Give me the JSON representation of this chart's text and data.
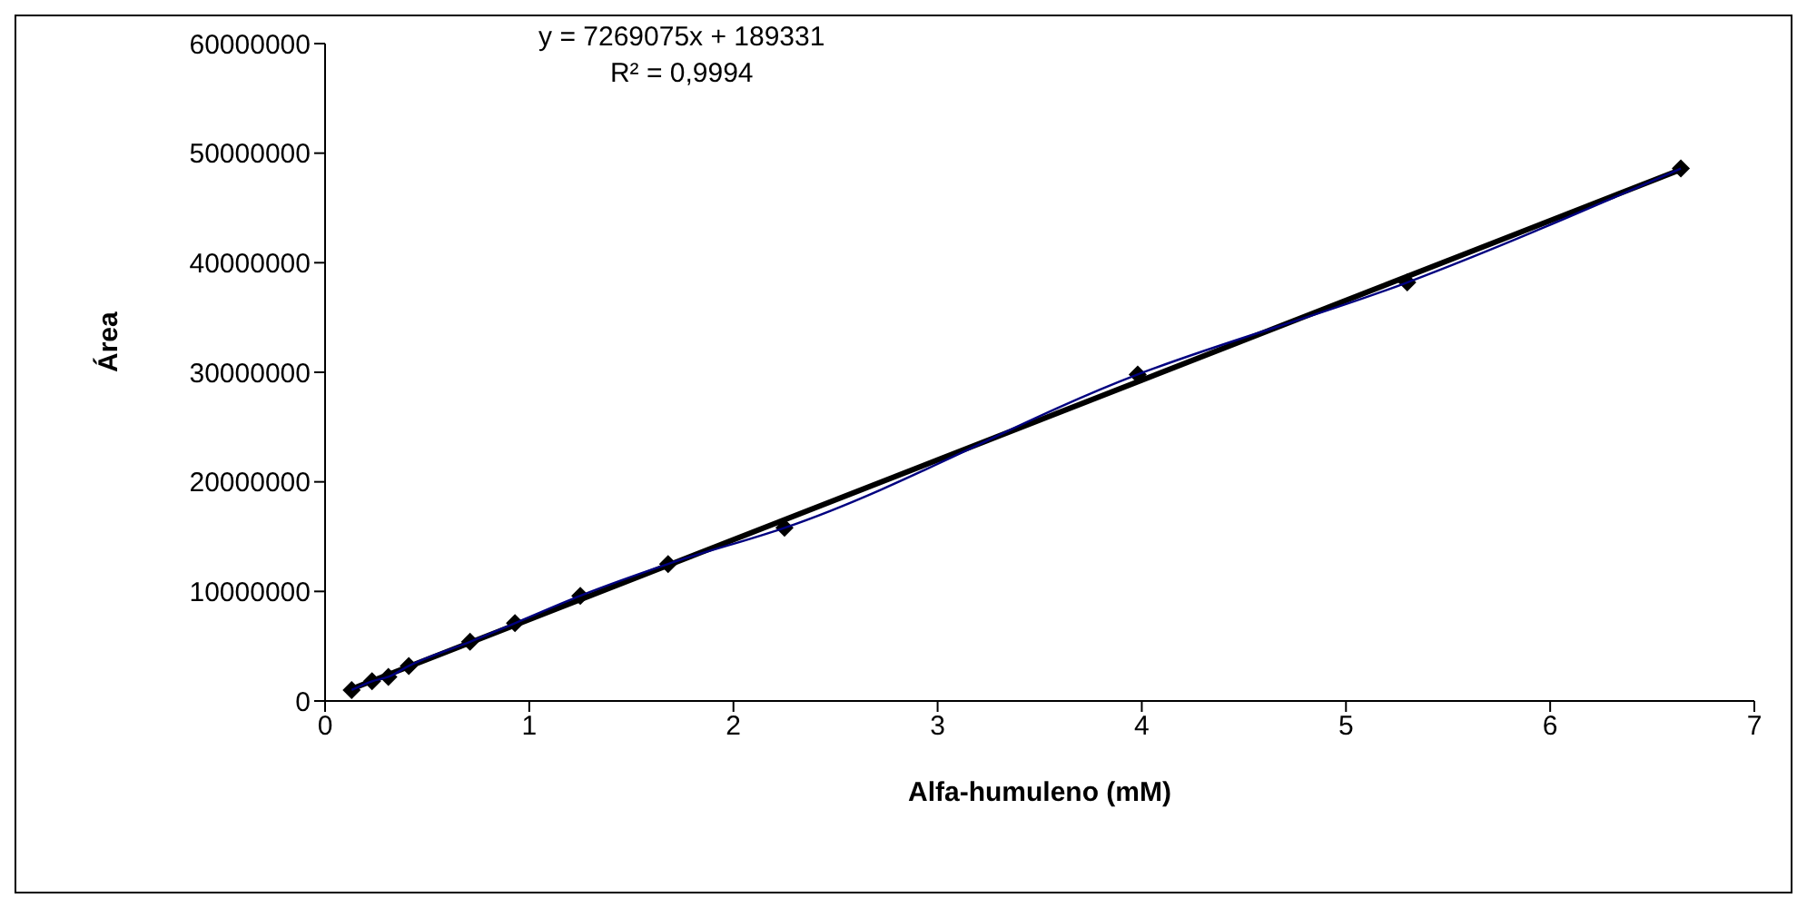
{
  "chart_data": {
    "type": "scatter",
    "xlabel": "Alfa-humuleno (mM)",
    "ylabel": "Área",
    "annotations": [
      "y = 7269075x + 189331",
      "R² = 0,9994"
    ],
    "xlim": [
      0,
      7
    ],
    "xticks": [
      0,
      1,
      2,
      3,
      4,
      5,
      6,
      7
    ],
    "ylim": [
      0,
      60000000
    ],
    "yticks": [
      0,
      10000000,
      20000000,
      30000000,
      40000000,
      50000000,
      60000000
    ],
    "grid": false,
    "legend": false,
    "series": [
      {
        "type": "line",
        "color": "#000000",
        "marker": "none",
        "x": [
          0.13,
          6.64
        ],
        "values": [
          1100000,
          48500000
        ]
      },
      {
        "color": "#000000",
        "marker": "diamond",
        "x": [
          0.13,
          0.23,
          0.31,
          0.41,
          0.71,
          0.93,
          1.25,
          1.68,
          2.25,
          3.98,
          5.3,
          6.64
        ],
        "values": [
          1000000,
          1800000,
          2200000,
          3200000,
          5400000,
          7100000,
          9600000,
          12500000,
          15800000,
          29800000,
          38200000,
          48600000
        ]
      },
      {
        "type": "line",
        "color": "#000080",
        "marker": "none",
        "x": [
          0.13,
          0.23,
          0.31,
          0.41,
          0.71,
          0.93,
          1.25,
          1.68,
          2.25,
          3.98,
          5.3,
          6.64
        ],
        "values": [
          1000000,
          1800000,
          2200000,
          3200000,
          5400000,
          7100000,
          9600000,
          12500000,
          15800000,
          29800000,
          38200000,
          48600000
        ]
      }
    ]
  }
}
